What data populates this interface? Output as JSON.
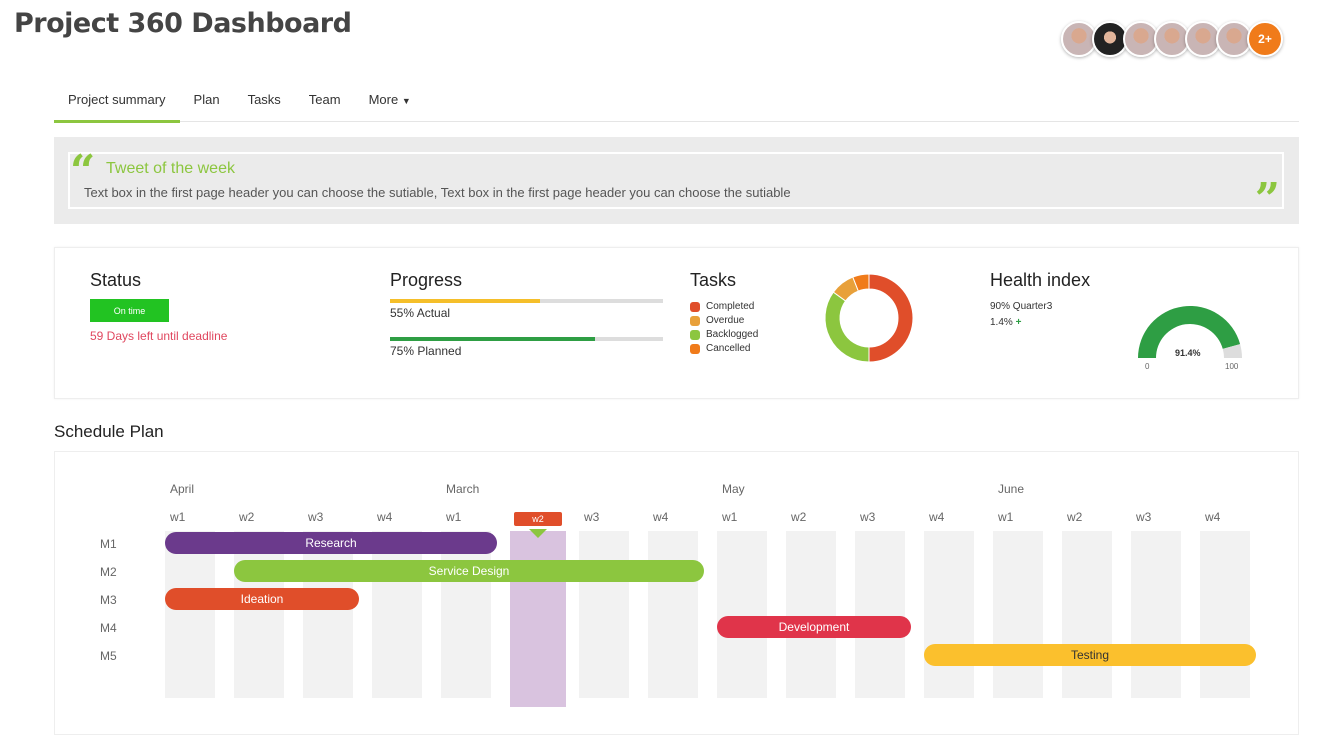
{
  "header": {
    "title": "Project 360 Dashboard",
    "avatars_more": "2+"
  },
  "tabs": [
    "Project summary",
    "Plan",
    "Tasks",
    "Team",
    "More"
  ],
  "tweet": {
    "title": "Tweet of the week",
    "text": "Text box in the first page header you can choose the sutiable, Text box in the first page header you can choose the sutiable"
  },
  "status": {
    "title": "Status",
    "badge": "On time",
    "deadline": "59 Days left until deadline"
  },
  "progress": {
    "title": "Progress",
    "actual_label": "55% Actual",
    "actual": 55,
    "planned_label": "75% Planned",
    "planned": 75
  },
  "tasks": {
    "title": "Tasks",
    "legend": [
      {
        "label": "Completed",
        "color": "#e04e2a",
        "value": 50
      },
      {
        "label": "Overdue",
        "color": "#e8a03a",
        "value": 9
      },
      {
        "label": "Backlogged",
        "color": "#8cc63f",
        "value": 35
      },
      {
        "label": "Cancelled",
        "color": "#f07b1a",
        "value": 6
      }
    ]
  },
  "health": {
    "title": "Health index",
    "quarter": "90% Quarter3",
    "change": "1.4%",
    "value": 91.4,
    "value_label": "91.4%",
    "min": "0",
    "max": "100"
  },
  "schedule": {
    "title": "Schedule Plan",
    "months": [
      "April",
      "March",
      "May",
      "June"
    ],
    "weeks": [
      "w1",
      "w2",
      "w3",
      "w4",
      "w1",
      "w2",
      "w3",
      "w4",
      "w1",
      "w2",
      "w3",
      "w4",
      "w1",
      "w2",
      "w3",
      "w4"
    ],
    "current_week": 5,
    "rows": [
      "M1",
      "M2",
      "M3",
      "M4",
      "M5"
    ],
    "tasks": [
      {
        "name": "Research",
        "row": 0,
        "start": 0,
        "end": 4,
        "color": "#6b3a8c"
      },
      {
        "name": "Service Design",
        "row": 1,
        "start": 1,
        "end": 7,
        "color": "#8cc63f"
      },
      {
        "name": "Ideation",
        "row": 2,
        "start": 0,
        "end": 2,
        "color": "#e04e2a"
      },
      {
        "name": "Development",
        "row": 3,
        "start": 8,
        "end": 10,
        "color": "#e0344a"
      },
      {
        "name": "Testing",
        "row": 4,
        "start": 11,
        "end": 15,
        "color": "#fbc02d"
      }
    ]
  }
}
